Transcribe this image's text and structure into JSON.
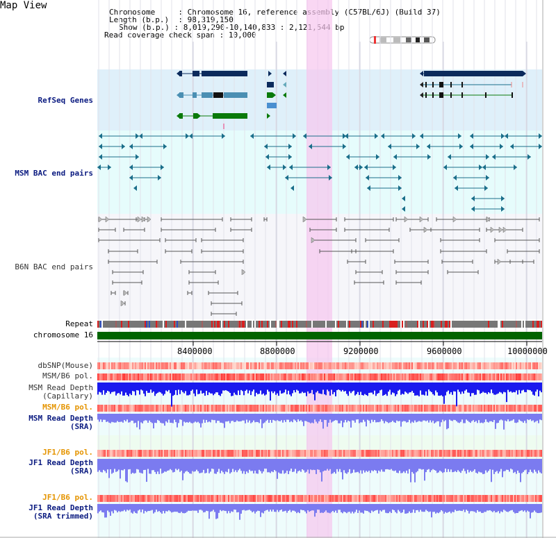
{
  "title": "Map View",
  "info": {
    "chromosome_label": "Chromosome",
    "chromosome_value": "Chromosome 16, reference assembly (C57BL/6J) (Build 37)",
    "length_label": "Length (b.p.)",
    "length_value": "98,319,150",
    "show_label": "Show (b.p.)",
    "show_value": "8,019,290-10,140,833 : 2,121,544 bp",
    "span_label": "Read coverage check span",
    "span_value": "10,000"
  },
  "tracks": {
    "refseq": "RefSeq Genes",
    "msm_bac": "MSM BAC end pairs",
    "b6n_bac": "B6N BAC end pairs",
    "repeat": "Repeat",
    "chromosome": "chromosome 16",
    "dbsnp": "dbSNP(Mouse)",
    "msm_b6_pol_1": "MSM/B6 pol.",
    "msm_depth_cap_1": "MSM Read Depth",
    "msm_depth_cap_2": "(Capillary)",
    "msm_b6_pol_2": "MSM/B6 pol.",
    "msm_depth_sra_1": "MSM Read Depth",
    "msm_depth_sra_2": "(SRA)",
    "jf1_b6_pol_1": "JF1/B6 pol.",
    "jf1_depth_sra_1": "JF1 Read Depth",
    "jf1_depth_sra_2": "(SRA)",
    "jf1_b6_pol_2": "JF1/B6 pol.",
    "jf1_depth_trim_1": "JF1 Read Depth",
    "jf1_depth_trim_2": "(SRA trimmed)"
  },
  "axis_ticks": [
    "8400000",
    "8800000",
    "9200000",
    "9600000",
    "10000000"
  ],
  "colors": {
    "refseq_bg": "#dff0fa",
    "bac_bg": "#e6fcfc",
    "highlight": "#f8d8f4",
    "msm_bac": "#1a6e8a",
    "b6n_bac": "#555555",
    "chromosome": "#006400",
    "depth_cap": "#1a1aee",
    "depth_sra": "#7b7bf0",
    "navy_label": "#0a1a80",
    "orange_label": "#e59400"
  }
}
